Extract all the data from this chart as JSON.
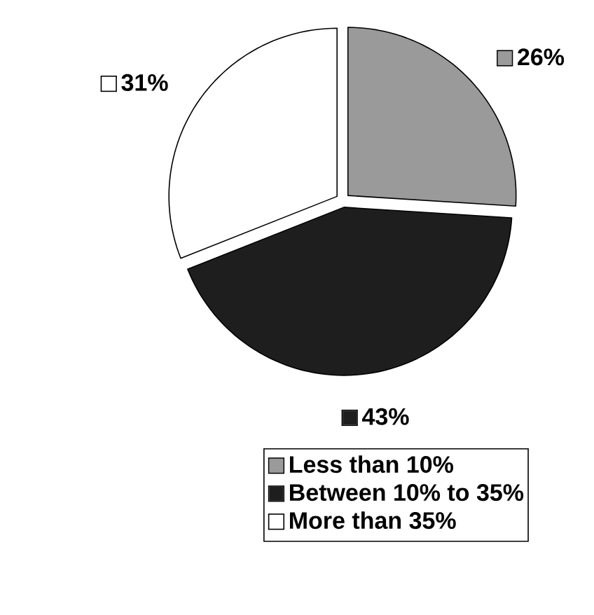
{
  "chart_data": {
    "type": "pie",
    "categories": [
      "Less than 10%",
      "Between 10% to 35%",
      "More than 35%"
    ],
    "values": [
      26,
      43,
      31
    ],
    "value_labels": [
      "26%",
      "43%",
      "31%"
    ],
    "colors": [
      "#9a9a9a",
      "#1e1e1e",
      "#ffffff"
    ],
    "legend": "bottom"
  }
}
